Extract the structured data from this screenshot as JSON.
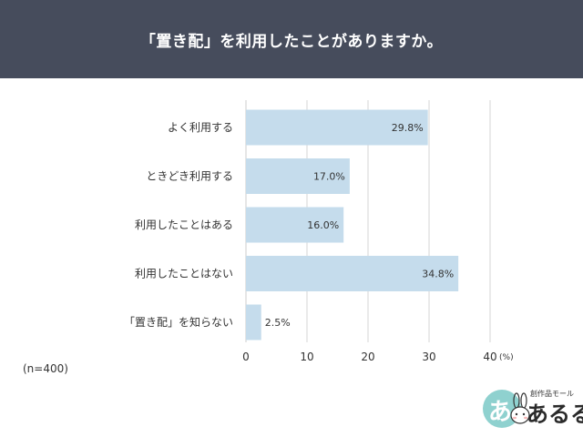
{
  "header": {
    "title": "「置き配」を利用したことがありますか。"
  },
  "chart_data": {
    "type": "bar",
    "orientation": "horizontal",
    "categories": [
      "よく利用する",
      "ときどき利用する",
      "利用したことはある",
      "利用したことはない",
      "「置き配」を知らない"
    ],
    "values": [
      29.8,
      17.0,
      16.0,
      34.8,
      2.5
    ],
    "data_labels": [
      "29.8%",
      "17.0%",
      "16.0%",
      "34.8%",
      "2.5%"
    ],
    "xlim": [
      0,
      40
    ],
    "xticks": [
      "0",
      "10",
      "20",
      "30",
      "40"
    ],
    "x_unit": "(%)",
    "grid": true,
    "bar_color": "#c5dcec",
    "title": "",
    "xlabel": "",
    "ylabel": ""
  },
  "note": "(n=400)",
  "logo": {
    "subtitle": "創作品モール",
    "name": "あるる",
    "mark": "あ"
  },
  "colors": {
    "header_bg": "#464c5c",
    "header_text": "#ffffff",
    "bar": "#c5dcec",
    "grid": "#d6d6d6",
    "logo_circle": "#8fd1cf"
  }
}
